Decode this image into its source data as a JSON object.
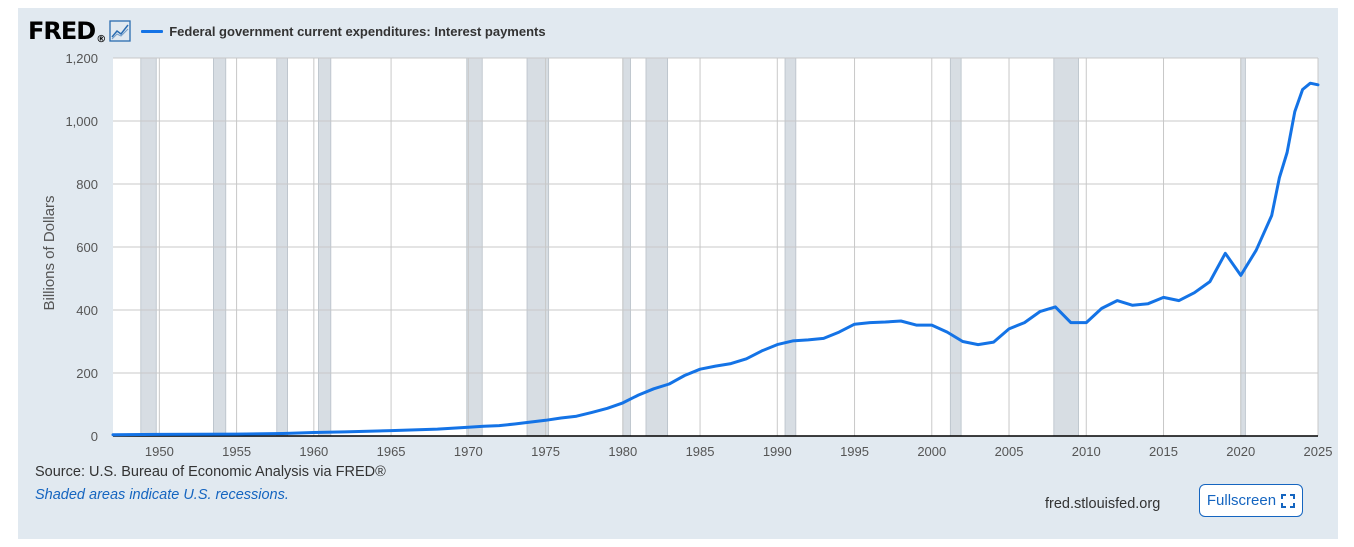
{
  "header": {
    "logo": "FRED",
    "logo_mark": "®",
    "legend_label": "Federal government current expenditures: Interest payments"
  },
  "footer": {
    "source": "Source: U.S. Bureau of Economic Analysis via FRED®",
    "note": "Shaded areas indicate U.S. recessions.",
    "site": "fred.stlouisfed.org",
    "fullscreen_label": "Fullscreen"
  },
  "colors": {
    "line": "#1473e6",
    "recession": "#d7dde3",
    "background": "#e1e9f0"
  },
  "icons": {
    "fred_graph": "fred-graph-icon",
    "fullscreen": "fullscreen-icon"
  },
  "chart_data": {
    "type": "line",
    "ylabel": "Billions of Dollars",
    "xlim": [
      1947.0,
      2025.0
    ],
    "ylim": [
      0,
      1200
    ],
    "yticks": [
      0,
      200,
      400,
      600,
      800,
      1000,
      1200
    ],
    "ytick_labels": [
      "0",
      "200",
      "400",
      "600",
      "800",
      "1,000",
      "1,200"
    ],
    "xticks": [
      1950,
      1955,
      1960,
      1965,
      1970,
      1975,
      1980,
      1985,
      1990,
      1995,
      2000,
      2005,
      2010,
      2015,
      2020,
      2025
    ],
    "xtick_labels": [
      "1950",
      "1955",
      "1960",
      "1965",
      "1970",
      "1975",
      "1980",
      "1985",
      "1990",
      "1995",
      "2000",
      "2005",
      "2010",
      "2015",
      "2020",
      "2025"
    ],
    "grid": true,
    "recessions": [
      [
        1948.8,
        1949.8
      ],
      [
        1953.5,
        1954.3
      ],
      [
        1957.6,
        1958.3
      ],
      [
        1960.3,
        1961.1
      ],
      [
        1969.9,
        1970.9
      ],
      [
        1973.8,
        1975.2
      ],
      [
        1980.0,
        1980.5
      ],
      [
        1981.5,
        1982.9
      ],
      [
        1990.5,
        1991.2
      ],
      [
        2001.2,
        2001.9
      ],
      [
        2007.9,
        2009.5
      ],
      [
        2020.0,
        2020.3
      ]
    ],
    "series": [
      {
        "x": [
          1947,
          1950,
          1955,
          1958,
          1960,
          1962,
          1965,
          1968,
          1970,
          1971,
          1972,
          1973,
          1974,
          1975,
          1976,
          1977,
          1978,
          1979,
          1980,
          1981,
          1982,
          1983,
          1984,
          1985,
          1986,
          1987,
          1988,
          1989,
          1990,
          1991,
          1992,
          1993,
          1994,
          1995,
          1996,
          1997,
          1998,
          1999,
          2000,
          2001,
          2002,
          2003,
          2004,
          2005,
          2006,
          2007,
          2008,
          2009,
          2010,
          2011,
          2012,
          2013,
          2014,
          2015,
          2016,
          2017,
          2018,
          2019,
          2020,
          2021,
          2022,
          2022.5,
          2023,
          2023.5,
          2024,
          2024.5,
          2025
        ],
        "values": [
          4,
          5,
          6,
          8,
          11,
          13,
          17,
          22,
          28,
          31,
          33,
          38,
          44,
          50,
          57,
          63,
          75,
          88,
          105,
          130,
          150,
          165,
          192,
          212,
          222,
          230,
          245,
          270,
          290,
          302,
          305,
          310,
          330,
          355,
          360,
          362,
          365,
          352,
          352,
          330,
          300,
          290,
          298,
          340,
          360,
          395,
          410,
          360,
          360,
          405,
          430,
          415,
          420,
          440,
          430,
          455,
          490,
          580,
          510,
          590,
          700,
          820,
          900,
          1030,
          1100,
          1120,
          1115
        ]
      }
    ]
  }
}
